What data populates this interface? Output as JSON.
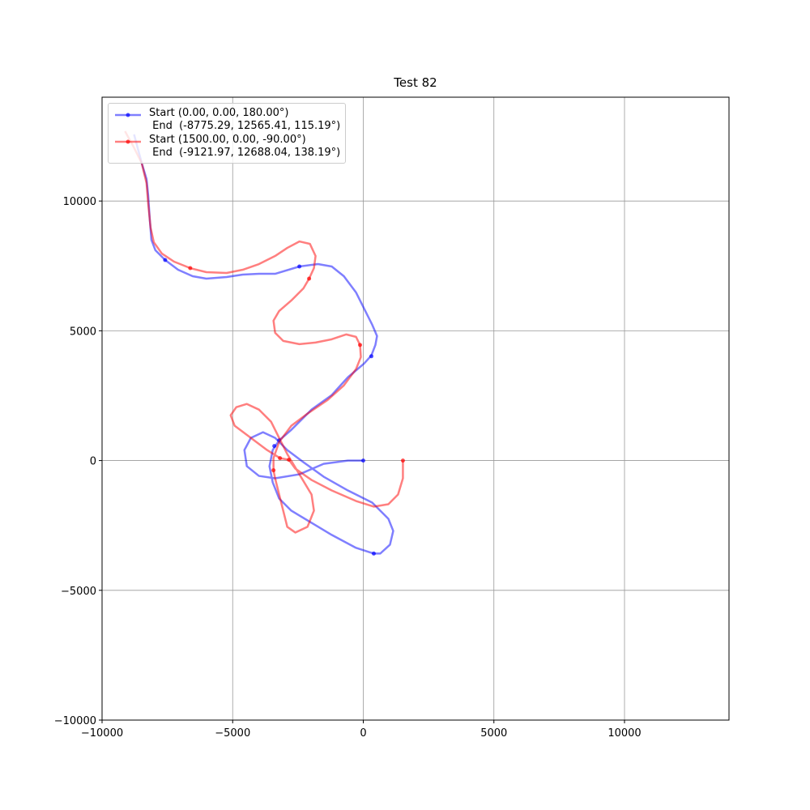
{
  "chart_data": {
    "type": "line",
    "title": "Test 82",
    "xlim": [
      -10000,
      14000
    ],
    "ylim": [
      -10000,
      14000
    ],
    "xticks": [
      {
        "value": -10000,
        "label": "−10000"
      },
      {
        "value": -5000,
        "label": "−5000"
      },
      0,
      5000,
      10000
    ],
    "yticks": [
      {
        "value": -10000,
        "label": "−10000"
      },
      {
        "value": -5000,
        "label": "−5000"
      },
      0,
      5000,
      10000
    ],
    "grid": true,
    "legend": "upper left",
    "alpha": 0.5,
    "series": [
      {
        "name": "Start (0.00, 0.00, 180.00°)\n End  (-8775.29, 12565.41, 115.19°)",
        "color": "#0000ff",
        "x": [
          0,
          -588,
          -1517,
          -2446,
          -3375,
          -3994,
          -4458,
          -4551,
          -4303,
          -3839,
          -3375,
          -2910,
          -2291,
          -1517,
          -588,
          341,
          960,
          1146,
          1022,
          650,
          402,
          -279,
          -1207,
          -1981,
          -2755,
          -3220,
          -3467,
          -3591,
          -3467,
          -3220,
          -2755,
          -1981,
          -1207,
          -588,
          31,
          310,
          464,
          526,
          341,
          31,
          -279,
          -743,
          -1207,
          -1734,
          -2446,
          -3375,
          -3994,
          -4613,
          -5232,
          -6006,
          -6533,
          -7090,
          -7585,
          -7957,
          -8111,
          -8173,
          -8235,
          -8297,
          -8483,
          -8775
        ],
        "y": [
          0,
          0,
          -125,
          -530,
          -685,
          -592,
          -218,
          405,
          872,
          1090,
          872,
          405,
          -62,
          -623,
          -1153,
          -1620,
          -2243,
          -2710,
          -3240,
          -3583,
          -3583,
          -3364,
          -2866,
          -2399,
          -1931,
          -1464,
          -841,
          -218,
          405,
          779,
          1184,
          1963,
          2523,
          3209,
          3738,
          4050,
          4455,
          4798,
          5234,
          5857,
          6480,
          7103,
          7477,
          7570,
          7477,
          7196,
          7196,
          7165,
          7072,
          7009,
          7103,
          7352,
          7726,
          8100,
          8505,
          9283,
          10218,
          10841,
          11464,
          12565
        ],
        "markers_x": [
          0,
          -3406,
          -3220,
          402,
          310,
          -2446,
          -7585
        ],
        "markers_y": [
          0,
          561,
          779,
          -3583,
          4019,
          7477,
          7726
        ]
      },
      {
        "name": "Start (1500.00, 0.00, -90.00°)\n End  (-9121.97, 12688.04, 138.19°)",
        "color": "#ff0000",
        "x": [
          1517,
          1517,
          1331,
          960,
          402,
          -279,
          -1207,
          -1981,
          -2601,
          -2848,
          -3189,
          -3684,
          -4303,
          -4923,
          -5077,
          -4861,
          -4458,
          -3994,
          -3529,
          -3220,
          -2910,
          -2446,
          -1981,
          -1889,
          -2136,
          -2601,
          -2910,
          -3065,
          -3220,
          -3375,
          -3437,
          -3437,
          -3220,
          -2755,
          -2136,
          -1362,
          -743,
          -279,
          -93,
          -124,
          -279,
          -650,
          -1207,
          -1827,
          -2446,
          -3065,
          -3375,
          -3437,
          -3220,
          -2755,
          -2291,
          -2074,
          -1889,
          -1827,
          -2043,
          -2446,
          -2910,
          -3375,
          -3994,
          -4613,
          -5232,
          -6006,
          -6625,
          -7245,
          -7709,
          -8019,
          -8142,
          -8235,
          -8297,
          -8483,
          -8793,
          -9122
        ],
        "y": [
          0,
          -685,
          -1308,
          -1682,
          -1776,
          -1558,
          -1153,
          -748,
          -312,
          31,
          93,
          405,
          872,
          1340,
          1745,
          2056,
          2181,
          1963,
          1495,
          872,
          249,
          -530,
          -1308,
          -1931,
          -2554,
          -2773,
          -2554,
          -1931,
          -1308,
          -685,
          -374,
          93,
          717,
          1340,
          1807,
          2336,
          2897,
          3520,
          3988,
          4455,
          4766,
          4860,
          4673,
          4548,
          4486,
          4611,
          4922,
          5389,
          5763,
          6168,
          6636,
          7009,
          7414,
          7882,
          8349,
          8442,
          8193,
          7882,
          7570,
          7352,
          7227,
          7259,
          7414,
          7664,
          7975,
          8411,
          8972,
          9906,
          10685,
          11464,
          12087,
          12688
        ],
        "markers_x": [
          1517,
          -2848,
          -3189,
          -3437,
          -124,
          -2074,
          -6625
        ],
        "markers_y": [
          0,
          31,
          93,
          -374,
          4455,
          7009,
          7414
        ]
      }
    ]
  }
}
